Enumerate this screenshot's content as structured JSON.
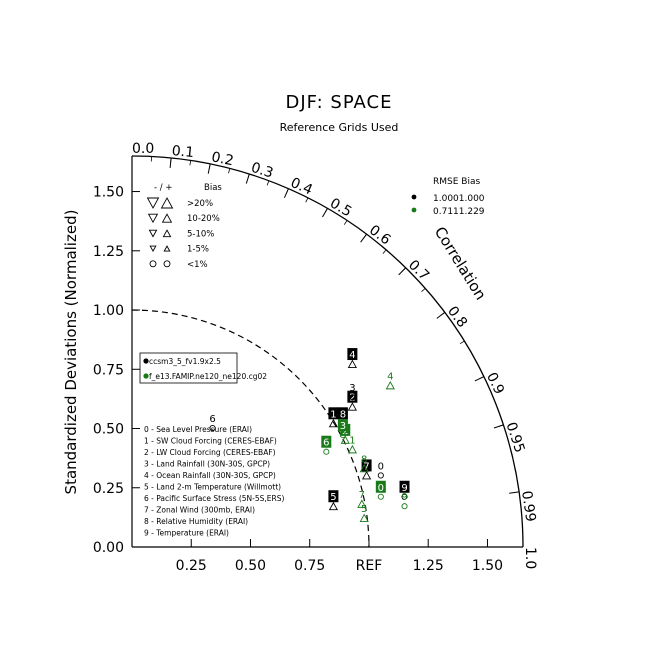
{
  "chart_data": {
    "type": "taylor",
    "title": "DJF: SPACE",
    "subtitle": "Reference Grids Used",
    "ylabel": "Standardized Deviations (Normalized)",
    "correlation_label": "Correlation",
    "ref_label": "REF",
    "std_range": [
      0,
      1.65
    ],
    "std_ticks": [
      "0.00",
      "0.25",
      "0.50",
      "0.75",
      "1.00",
      "1.25",
      "1.50"
    ],
    "x_ticks": [
      "0.25",
      "0.50",
      "0.75",
      "REF",
      "1.25",
      "1.50"
    ],
    "correlation_ticks": [
      "0.0",
      "0.1",
      "0.2",
      "0.3",
      "0.4",
      "0.5",
      "0.6",
      "0.7",
      "0.8",
      "0.9",
      "0.95",
      "0.99",
      "1.0"
    ],
    "bias_legend": {
      "header_sign": "- / +",
      "header_label": "Bias",
      "rows": [
        ">20%",
        "10-20%",
        "5-10%",
        "1-5%",
        "<1%"
      ]
    },
    "rmse_bias_legend": {
      "header": "RMSE  Bias",
      "rows": [
        {
          "text": "1.0001.000",
          "color": "#000000"
        },
        {
          "text": "0.7111.229",
          "color": "#1a7a1a"
        }
      ]
    },
    "case_legend": [
      {
        "name": "ccsm3_5_fv1.9x2.5",
        "color": "#000000"
      },
      {
        "name": "f_e13.FAMIP.ne120_ne120.cg02",
        "color": "#1a7a1a"
      }
    ],
    "variables": [
      "0 - Sea Level Pressure (ERAI)",
      "1 - SW Cloud Forcing (CERES-EBAF)",
      "2 - LW Cloud Forcing (CERES-EBAF)",
      "3 - Land Rainfall (30N-30S, GPCP)",
      "4 - Ocean Rainfall (30N-30S, GPCP)",
      "5 - Land 2-m Temperature (Willmott)",
      "6 - Pacific Surface Stress (5N-5S,ERS)",
      "7 - Zonal Wind (300mb, ERAI)",
      "8 - Relative Humidity (ERAI)",
      "9 - Temperature (ERAI)"
    ],
    "series": [
      {
        "name": "ccsm3_5_fv1.9x2.5",
        "color": "#000000",
        "points": [
          {
            "id": "0",
            "x": 1.05,
            "y": 0.34,
            "boxed": false
          },
          {
            "id": "1",
            "x": 0.85,
            "y": 0.56,
            "boxed": true
          },
          {
            "id": "2",
            "x": 0.93,
            "y": 0.63,
            "boxed": true
          },
          {
            "id": "3",
            "x": 0.93,
            "y": 0.67,
            "boxed": false
          },
          {
            "id": "4",
            "x": 0.93,
            "y": 0.81,
            "boxed": true
          },
          {
            "id": "5",
            "x": 0.85,
            "y": 0.21,
            "boxed": true
          },
          {
            "id": "6",
            "x": 0.34,
            "y": 0.54,
            "boxed": false
          },
          {
            "id": "7",
            "x": 0.99,
            "y": 0.34,
            "boxed": true
          },
          {
            "id": "8",
            "x": 0.89,
            "y": 0.56,
            "boxed": true
          },
          {
            "id": "9",
            "x": 1.15,
            "y": 0.25,
            "boxed": true
          }
        ]
      },
      {
        "name": "f_e13.FAMIP.ne120_ne120.cg02",
        "color": "#1a7a1a",
        "points": [
          {
            "id": "0",
            "x": 1.05,
            "y": 0.25,
            "boxed": true
          },
          {
            "id": "1",
            "x": 0.93,
            "y": 0.45,
            "boxed": false
          },
          {
            "id": "2",
            "x": 0.9,
            "y": 0.49,
            "boxed": true
          },
          {
            "id": "3",
            "x": 0.89,
            "y": 0.51,
            "boxed": true
          },
          {
            "id": "4",
            "x": 1.09,
            "y": 0.72,
            "boxed": false
          },
          {
            "id": "5",
            "x": 0.98,
            "y": 0.16,
            "boxed": false
          },
          {
            "id": "6",
            "x": 0.82,
            "y": 0.44,
            "boxed": true
          },
          {
            "id": "7",
            "x": 0.97,
            "y": 0.22,
            "boxed": false
          },
          {
            "id": "8",
            "x": 0.98,
            "y": 0.37,
            "boxed": false
          },
          {
            "id": "9",
            "x": 1.15,
            "y": 0.21,
            "boxed": false
          }
        ]
      }
    ]
  }
}
